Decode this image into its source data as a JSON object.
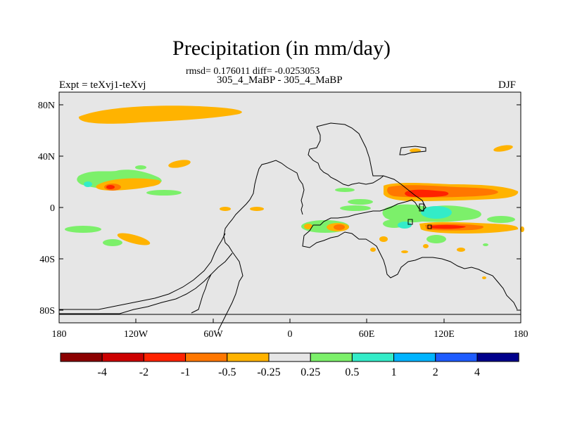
{
  "title": "Precipitation (in mm/day)",
  "stats": "rmsd= 0.176011 diff= -0.0253053",
  "subtitle": "305_4_MaBP - 305_4_MaBP",
  "left_label": "Expt = teXvj1-teXvj",
  "right_label": "DJF",
  "map": {
    "background": "#e6e6e6",
    "lat_ticks": [
      "80N",
      "40N",
      "0",
      "40S",
      "80S"
    ],
    "lon_ticks": [
      "180",
      "120W",
      "60W",
      "0",
      "60E",
      "120E",
      "180"
    ]
  },
  "colorbar": {
    "colors": [
      "#8b0000",
      "#cc0000",
      "#ff2200",
      "#ff7700",
      "#ffb300",
      "#e6e6e6",
      "#7cf06a",
      "#33ecc8",
      "#00b4ff",
      "#1e5cff",
      "#00008b"
    ],
    "labels": [
      "-4",
      "-2",
      "-1",
      "-0.5",
      "-0.25",
      "0.25",
      "0.5",
      "1",
      "2",
      "4"
    ]
  }
}
